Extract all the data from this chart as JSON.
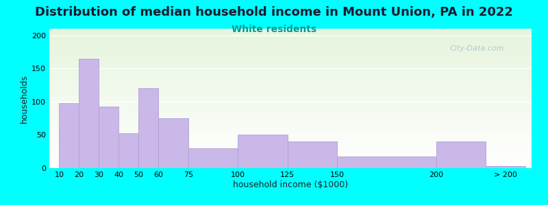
{
  "title": "Distribution of median household income in Mount Union, PA in 2022",
  "subtitle": "White residents",
  "xlabel": "household income ($1000)",
  "ylabel": "households",
  "bar_labels": [
    "10",
    "20",
    "30",
    "40",
    "50",
    "60",
    "75",
    "100",
    "125",
    "150",
    "200",
    "> 200"
  ],
  "bar_values": [
    98,
    165,
    93,
    52,
    120,
    75,
    30,
    50,
    40,
    18,
    40,
    3
  ],
  "bar_color": "#c9b8e8",
  "bar_edge_color": "#b0a0d8",
  "ylim": [
    0,
    210
  ],
  "yticks": [
    0,
    50,
    100,
    150,
    200
  ],
  "background_color": "#00ffff",
  "title_fontsize": 13,
  "subtitle_fontsize": 10,
  "subtitle_color": "#009999",
  "axis_label_fontsize": 9,
  "tick_fontsize": 8,
  "watermark_text": "City-Data.com",
  "watermark_color": "#a8bfcf",
  "grid_color": "#ccddcc"
}
